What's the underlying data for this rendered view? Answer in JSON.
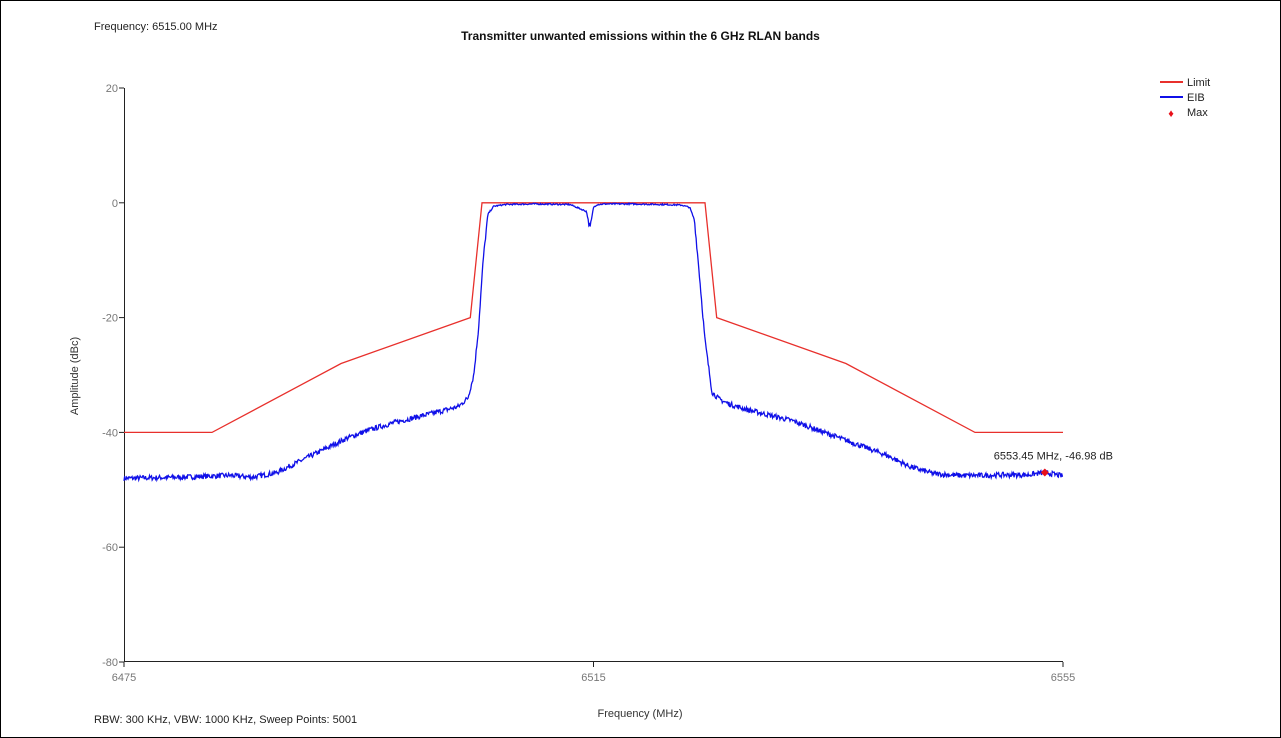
{
  "header": {
    "frequency_info": "Frequency: 6515.00 MHz",
    "footer_info": "RBW: 300 KHz,  VBW: 1000 KHz,  Sweep Points: 5001"
  },
  "chart_data": {
    "type": "line",
    "title": "Transmitter unwanted emissions within the 6 GHz RLAN bands",
    "xlabel": "Frequency (MHz)",
    "ylabel": "Amplitude (dBc)",
    "xlim": [
      6475,
      6555
    ],
    "ylim": [
      -80,
      20
    ],
    "xticks": [
      6475,
      6515,
      6555
    ],
    "xtick_labels": [
      "6475",
      "6515",
      "6555"
    ],
    "yticks": [
      20,
      0,
      -20,
      -40,
      -60,
      -80
    ],
    "ytick_labels": [
      "20",
      "0",
      "-20",
      "-40",
      "-60",
      "-80"
    ],
    "grid": false,
    "legend_position": "top-right",
    "legend": [
      "Limit",
      "EIB",
      "Max"
    ],
    "colors": {
      "limit": "#e8302c",
      "eib": "#1010e8",
      "max": "#e8101a"
    },
    "series": [
      {
        "name": "Limit",
        "x": [
          6475,
          6482.5,
          6493.5,
          6504.5,
          6505.5,
          6524.5,
          6525.5,
          6536.5,
          6547.5,
          6555
        ],
        "y": [
          -40,
          -40,
          -28,
          -20,
          0,
          0,
          -20,
          -28,
          -40,
          -40
        ]
      },
      {
        "name": "EIB",
        "x": [
          6475,
          6480,
          6484,
          6486,
          6488,
          6490,
          6492,
          6494,
          6496,
          6498,
          6500,
          6502,
          6503.5,
          6504.3,
          6504.8,
          6505.2,
          6505.6,
          6506,
          6506.5,
          6507.5,
          6510,
          6513,
          6514.4,
          6514.7,
          6515,
          6515.3,
          6516,
          6518,
          6521,
          6522.5,
          6523.2,
          6523.6,
          6524,
          6524.5,
          6525.1,
          6525.7,
          6526.5,
          6528,
          6530,
          6532,
          6534,
          6536,
          6538,
          6540,
          6542,
          6544,
          6546,
          6548,
          6550,
          6552,
          6553.45,
          6555
        ],
        "y": [
          -48,
          -47.8,
          -47.5,
          -47.8,
          -47,
          -45,
          -43,
          -41,
          -39.5,
          -38.3,
          -37.3,
          -36.3,
          -35.5,
          -34,
          -30,
          -22,
          -10,
          -2,
          -0.6,
          -0.3,
          -0.2,
          -0.3,
          -1.5,
          -4.5,
          -0.8,
          -0.3,
          -0.2,
          -0.2,
          -0.3,
          -0.4,
          -0.8,
          -3,
          -12,
          -24,
          -33,
          -34.2,
          -35,
          -36,
          -37,
          -38,
          -39.5,
          -41,
          -42.5,
          -44,
          -46,
          -47.2,
          -47.5,
          -47.5,
          -47.4,
          -47.4,
          -46.98,
          -47.6
        ]
      }
    ],
    "max_marker": {
      "x": 6553.45,
      "y": -46.98,
      "label": "6553.45 MHz, -46.98 dB"
    }
  }
}
